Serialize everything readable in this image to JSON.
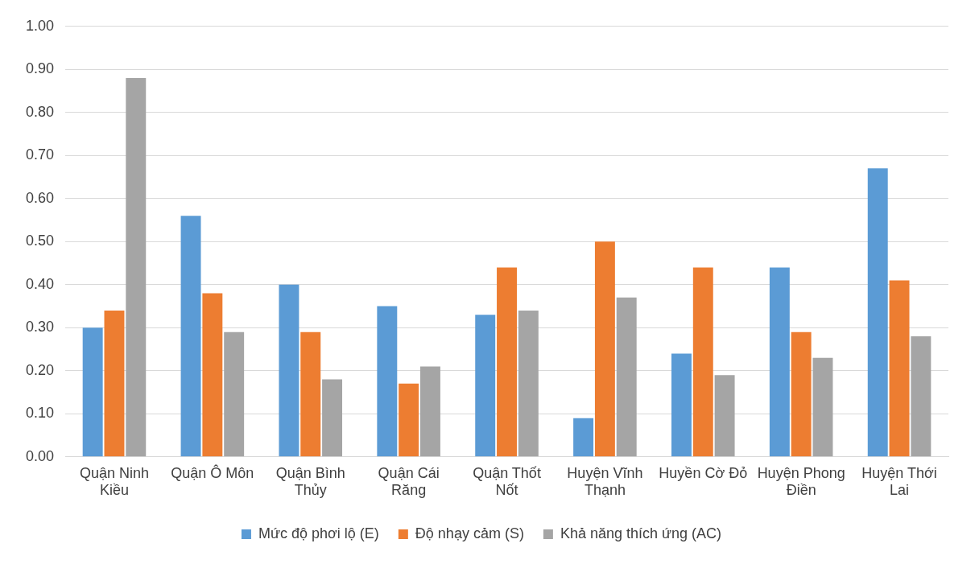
{
  "chart_data": {
    "type": "bar",
    "categories": [
      "Quận Ninh Kiều",
      "Quận Ô Môn",
      "Quận Bình Thủy",
      "Quận Cái Răng",
      "Quận Thốt Nốt",
      "Huyện Vĩnh Thạnh",
      "Huyền Cờ Đỏ",
      "Huyện Phong Điền",
      "Huyện Thới Lai"
    ],
    "series": [
      {
        "name": "Mức độ phơi lộ (E)",
        "color": "#5b9bd5",
        "values": [
          0.3,
          0.56,
          0.4,
          0.35,
          0.33,
          0.09,
          0.24,
          0.44,
          0.67
        ]
      },
      {
        "name": "Độ nhạy cảm (S)",
        "color": "#ed7d31",
        "values": [
          0.34,
          0.38,
          0.29,
          0.17,
          0.44,
          0.5,
          0.44,
          0.29,
          0.41
        ]
      },
      {
        "name": "Khả năng thích ứng (AC)",
        "color": "#a5a5a5",
        "values": [
          0.88,
          0.29,
          0.18,
          0.21,
          0.34,
          0.37,
          0.19,
          0.23,
          0.28
        ]
      }
    ],
    "ylim": [
      0,
      1
    ],
    "yticks": [
      {
        "value": 0,
        "label": "0.00"
      },
      {
        "value": 0.1,
        "label": "0.10"
      },
      {
        "value": 0.2,
        "label": "0.20"
      },
      {
        "value": 0.3,
        "label": "0.30"
      },
      {
        "value": 0.4,
        "label": "0.40"
      },
      {
        "value": 0.5,
        "label": "0.50"
      },
      {
        "value": 0.6,
        "label": "0.60"
      },
      {
        "value": 0.7,
        "label": "0.70"
      },
      {
        "value": 0.8,
        "label": "0.80"
      },
      {
        "value": 0.9,
        "label": "0.90"
      },
      {
        "value": 1,
        "label": "1.00"
      }
    ],
    "grid": "y",
    "legend": "bottom"
  }
}
